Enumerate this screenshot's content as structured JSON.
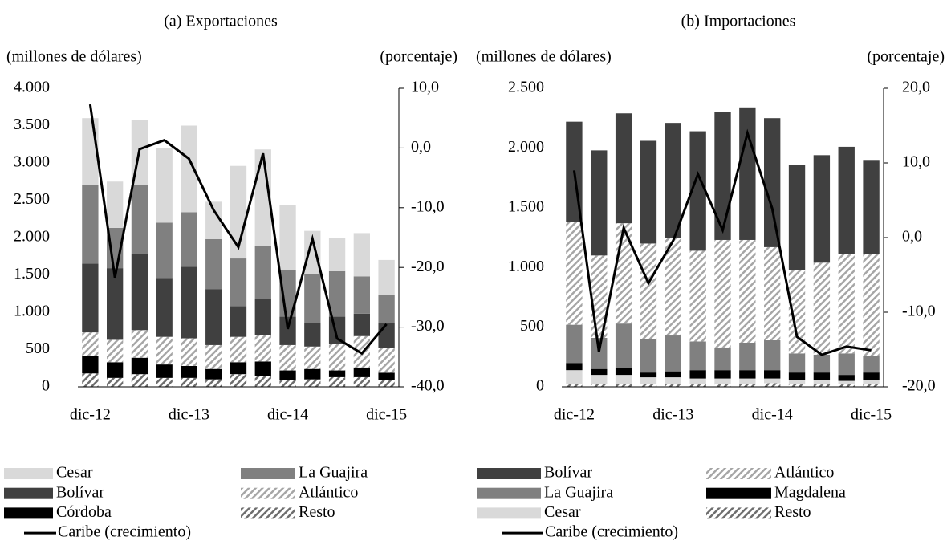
{
  "chart_data": [
    {
      "type": "bar",
      "stacked": true,
      "title": "(a) Exportaciones",
      "y_label": "(millones de dólares)",
      "y2_label": "(porcentaje)",
      "categories": [
        "dic-12",
        null,
        null,
        null,
        "dic-13",
        null,
        null,
        null,
        "dic-14",
        null,
        null,
        null,
        "dic-15"
      ],
      "ylim": [
        0,
        4000
      ],
      "yticks": [
        0,
        {
          "value": 500,
          "label": "500"
        },
        {
          "value": 1000,
          "label": "1.000"
        },
        {
          "value": 1500,
          "label": "1.500"
        },
        {
          "value": 2000,
          "label": "2.000"
        },
        {
          "value": 2500,
          "label": "2.500"
        },
        {
          "value": 3000,
          "label": "3.000"
        },
        {
          "value": 3500,
          "label": "3.500"
        },
        {
          "value": 4000,
          "label": "4.000"
        }
      ],
      "y2lim": [
        -40,
        10
      ],
      "y2ticks": [
        {
          "value": -40,
          "label": "-40,0"
        },
        {
          "value": -30,
          "label": "-30,0"
        },
        {
          "value": -20,
          "label": "-20,0"
        },
        {
          "value": -10,
          "label": "-10,0"
        },
        {
          "value": 0,
          "label": "0,0"
        },
        {
          "value": 10,
          "label": "10,0"
        }
      ],
      "grid": false,
      "series": [
        {
          "name": "Cesar",
          "color": "#d9d9d9",
          "values": [
            900,
            620,
            880,
            1000,
            1160,
            500,
            1240,
            1290,
            860,
            580,
            450,
            580,
            470
          ]
        },
        {
          "name": "La Guajira",
          "color": "#808080",
          "values": [
            1050,
            540,
            920,
            740,
            730,
            670,
            640,
            710,
            630,
            650,
            610,
            500,
            380
          ]
        },
        {
          "name": "Bolívar",
          "color": "#404040",
          "values": [
            920,
            960,
            1020,
            790,
            960,
            750,
            410,
            490,
            380,
            320,
            360,
            300,
            330
          ]
        },
        {
          "name": "Atlántico",
          "color": "#a6a6a6",
          "hatch": true,
          "values": [
            320,
            300,
            370,
            370,
            370,
            320,
            340,
            350,
            340,
            300,
            360,
            420,
            330
          ]
        },
        {
          "name": "Córdoba",
          "color": "#000000",
          "values": [
            230,
            210,
            220,
            180,
            160,
            140,
            160,
            190,
            130,
            140,
            90,
            130,
            100
          ]
        },
        {
          "name": "Resto",
          "color": "#6e6e6e",
          "hatch": true,
          "values": [
            180,
            120,
            170,
            120,
            120,
            100,
            170,
            150,
            90,
            100,
            130,
            130,
            90
          ]
        },
        {
          "name": "Caribe (crecimiento)",
          "type": "line",
          "axis": "y2",
          "color": "#000000",
          "values": [
            7.3,
            -21.7,
            -0.2,
            1.3,
            -1.8,
            -10.4,
            -16.6,
            -0.9,
            -30.3,
            -15.2,
            -31.9,
            -34.4,
            -29.5
          ]
        }
      ]
    },
    {
      "type": "bar",
      "stacked": true,
      "title": "(b) Importaciones",
      "y_label": "(millones de dólares)",
      "y2_label": "(porcentaje)",
      "categories": [
        "dic-12",
        null,
        null,
        null,
        "dic-13",
        null,
        null,
        null,
        "dic-14",
        null,
        null,
        null,
        "dic-15"
      ],
      "ylim": [
        0,
        2500
      ],
      "yticks": [
        0,
        {
          "value": 500,
          "label": "500"
        },
        {
          "value": 1000,
          "label": "1.000"
        },
        {
          "value": 1500,
          "label": "1.500"
        },
        {
          "value": 2000,
          "label": "2.000"
        },
        {
          "value": 2500,
          "label": "2.500"
        }
      ],
      "y2lim": [
        -20,
        20
      ],
      "y2ticks": [
        {
          "value": -20,
          "label": "-20,0"
        },
        {
          "value": -10,
          "label": "-10,0"
        },
        {
          "value": 0,
          "label": "0,0"
        },
        {
          "value": 10,
          "label": "10,0"
        },
        {
          "value": 20,
          "label": "20,0"
        }
      ],
      "grid": false,
      "series": [
        {
          "name": "Bolívar",
          "color": "#404040",
          "values": [
            840,
            880,
            920,
            860,
            960,
            1000,
            1070,
            1110,
            1080,
            880,
            900,
            900,
            790
          ]
        },
        {
          "name": "Atlántico",
          "color": "#a6a6a6",
          "hatch": true,
          "values": [
            860,
            690,
            840,
            800,
            820,
            760,
            900,
            860,
            780,
            700,
            770,
            830,
            850
          ]
        },
        {
          "name": "La Guajira",
          "color": "#808080",
          "values": [
            320,
            260,
            370,
            280,
            300,
            240,
            190,
            230,
            250,
            160,
            150,
            180,
            140
          ]
        },
        {
          "name": "Magdalena",
          "color": "#000000",
          "values": [
            60,
            50,
            60,
            40,
            50,
            70,
            70,
            70,
            70,
            60,
            60,
            50,
            60
          ]
        },
        {
          "name": "Cesar",
          "color": "#d9d9d9",
          "values": [
            120,
            80,
            80,
            60,
            60,
            50,
            50,
            50,
            40,
            40,
            40,
            30,
            40
          ]
        },
        {
          "name": "Resto",
          "color": "#6e6e6e",
          "hatch": true,
          "values": [
            20,
            20,
            20,
            20,
            20,
            20,
            20,
            20,
            30,
            20,
            20,
            20,
            20
          ]
        },
        {
          "name": "Caribe (crecimiento)",
          "type": "line",
          "axis": "y2",
          "color": "#000000",
          "values": [
            9.0,
            -15.3,
            1.3,
            -6.1,
            -0.4,
            8.5,
            1.0,
            14.0,
            3.9,
            -13.3,
            -15.7,
            -14.6,
            -15.1
          ]
        }
      ]
    }
  ]
}
